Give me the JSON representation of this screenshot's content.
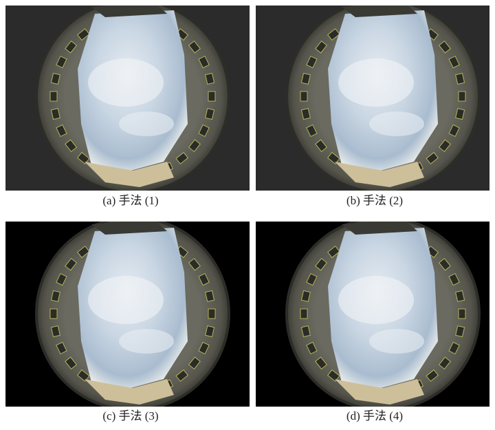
{
  "panels": [
    {
      "caption": "(a) 手法 (1)"
    },
    {
      "caption": "(b) 手法 (2)"
    },
    {
      "caption": "(c) 手法 (3)"
    },
    {
      "caption": "(d) 手法 (4)"
    }
  ]
}
